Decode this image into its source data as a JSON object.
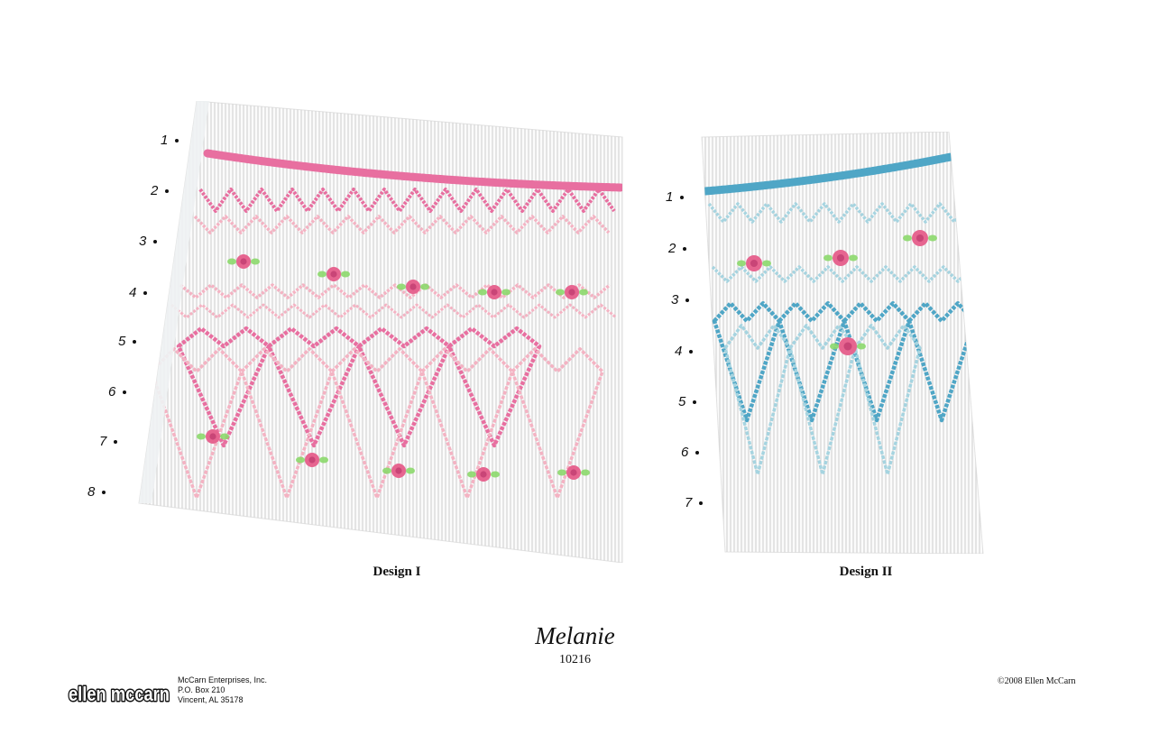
{
  "designs": [
    {
      "caption": "Design I",
      "rows": [
        "1",
        "2",
        "3",
        "4",
        "5",
        "6",
        "7",
        "8"
      ],
      "primary_color": "#e86fa0",
      "secondary_color": "#f4b3c3",
      "rose_color": "#e66590",
      "leaf_color": "#8cd86c"
    },
    {
      "caption": "Design II",
      "rows": [
        "1",
        "2",
        "3",
        "4",
        "5",
        "6",
        "7"
      ],
      "primary_color": "#4fa6c6",
      "secondary_color": "#a6d4e0",
      "rose_color": "#e66590",
      "leaf_color": "#8cd86c"
    }
  ],
  "title": "Melanie",
  "pattern_number": "10216",
  "logo_text": "ellen mccarn",
  "company": {
    "name": "McCarn Enterprises, Inc.",
    "po_box": "P.O. Box 210",
    "city": "Vincent, AL 35178"
  },
  "copyright": "©2008 Ellen McCarn"
}
